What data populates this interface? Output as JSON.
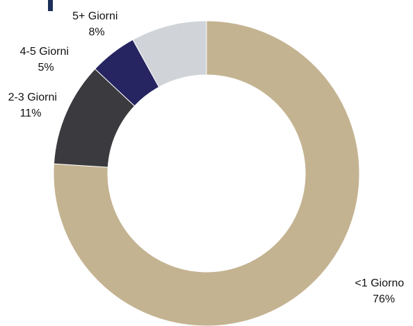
{
  "chart_data": {
    "type": "pie",
    "style": "donut",
    "start": "12 o'clock",
    "direction": "clockwise",
    "slices": [
      {
        "label": "<1 Giorno",
        "value": 76,
        "value_label": "76%",
        "color": "#c4b391"
      },
      {
        "label": "2-3 Giorni",
        "value": 11,
        "value_label": "11%",
        "color": "#3b3a3e"
      },
      {
        "label": "4-5 Giorni",
        "value": 5,
        "value_label": "5%",
        "color": "#262561"
      },
      {
        "label": "5+ Giorni",
        "value": 8,
        "value_label": "8%",
        "color": "#d0d4d9"
      }
    ]
  }
}
